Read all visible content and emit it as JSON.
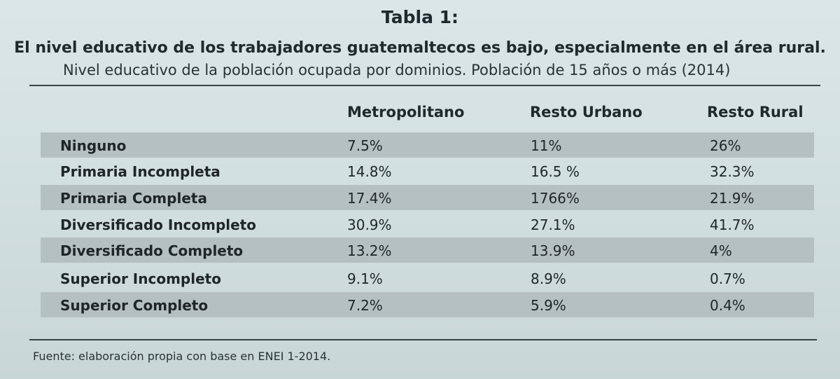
{
  "table": {
    "title": "Tabla 1:",
    "subtitle": "El nivel educativo de los trabajadores guatemaltecos es bajo, especialmente en el área rural.",
    "caption": "Nivel educativo de la población ocupada por dominios. Población de 15 años o más (2014)",
    "columns": [
      "Metropolitano",
      "Resto Urbano",
      "Resto Rural"
    ],
    "rows": [
      {
        "label": "Ninguno",
        "values": [
          "7.5%",
          "11%",
          "26%"
        ]
      },
      {
        "label": "Primaria Incompleta",
        "values": [
          "14.8%",
          "16.5 %",
          "32.3%"
        ]
      },
      {
        "label": "Primaria Completa",
        "values": [
          "17.4%",
          "1766%",
          "21.9%"
        ]
      },
      {
        "label": "Diversificado Incompleto",
        "values": [
          "30.9%",
          "27.1%",
          "41.7%"
        ]
      },
      {
        "label": "Diversificado Completo",
        "values": [
          "13.2%",
          "13.9%",
          "4%"
        ]
      },
      {
        "label": "Superior Incompleto",
        "values": [
          "9.1%",
          "8.9%",
          "0.7%"
        ]
      },
      {
        "label": "Superior Completo",
        "values": [
          "7.2%",
          "5.9%",
          "0.4%"
        ]
      }
    ],
    "source": "Fuente: elaboración propia con base en ENEI 1-2014."
  }
}
